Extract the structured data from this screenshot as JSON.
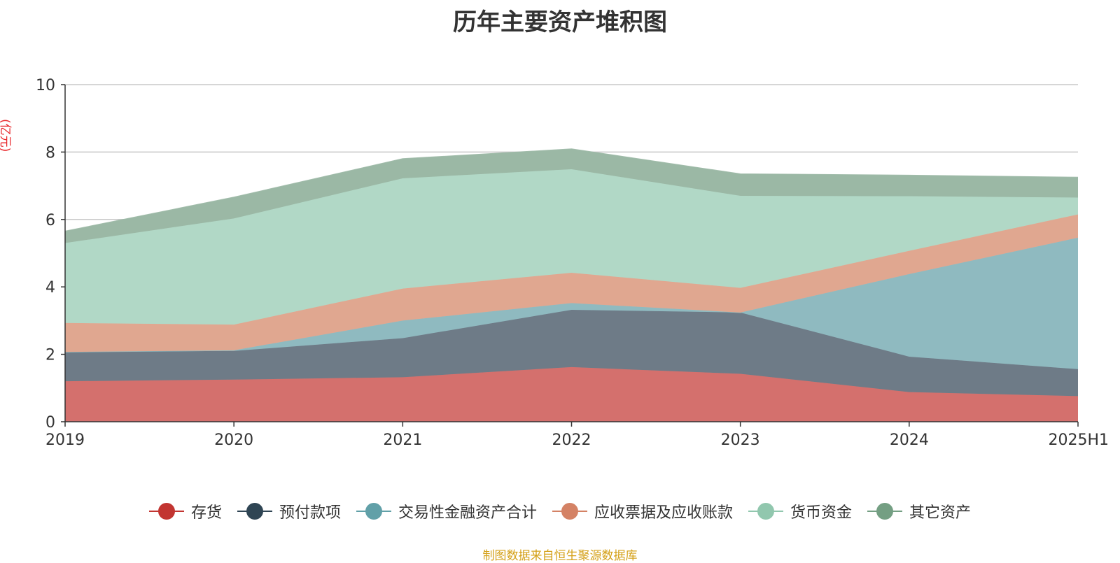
{
  "title": "历年主要资产堆积图",
  "unit_label": "(亿元)",
  "source": "制图数据来自恒生聚源数据库",
  "chart_data": {
    "type": "area",
    "stacked": true,
    "title": "历年主要资产堆积图",
    "ylabel": "(亿元)",
    "categories": [
      "2019",
      "2020",
      "2021",
      "2022",
      "2023",
      "2024",
      "2025H1"
    ],
    "ylim": [
      0,
      10
    ],
    "yticks": [
      0,
      2,
      4,
      6,
      8,
      10
    ],
    "grid": true,
    "legend_position": "bottom",
    "series": [
      {
        "name": "存货",
        "color": "#c23531",
        "fill": "#d4706d",
        "values": [
          1.2,
          1.25,
          1.32,
          1.62,
          1.42,
          0.88,
          0.76
        ]
      },
      {
        "name": "预付款项",
        "color": "#2f4554",
        "fill": "#6e7b87",
        "values": [
          0.87,
          0.85,
          1.16,
          1.7,
          1.82,
          1.05,
          0.8
        ]
      },
      {
        "name": "交易性金融资产合计",
        "color": "#61a0a8",
        "fill": "#8fbac0",
        "values": [
          0.0,
          0.02,
          0.52,
          0.2,
          0.0,
          2.45,
          3.9
        ]
      },
      {
        "name": "应收票据及应收账款",
        "color": "#d48265",
        "fill": "#e0a790",
        "values": [
          0.86,
          0.76,
          0.95,
          0.9,
          0.73,
          0.69,
          0.69
        ]
      },
      {
        "name": "货币资金",
        "color": "#91c7ae",
        "fill": "#b1d8c6",
        "values": [
          2.37,
          3.15,
          3.27,
          3.07,
          2.73,
          1.62,
          0.5
        ]
      },
      {
        "name": "其它资产",
        "color": "#749f83",
        "fill": "#9bb8a5",
        "values": [
          0.35,
          0.63,
          0.58,
          0.6,
          0.65,
          0.62,
          0.6
        ]
      }
    ]
  }
}
